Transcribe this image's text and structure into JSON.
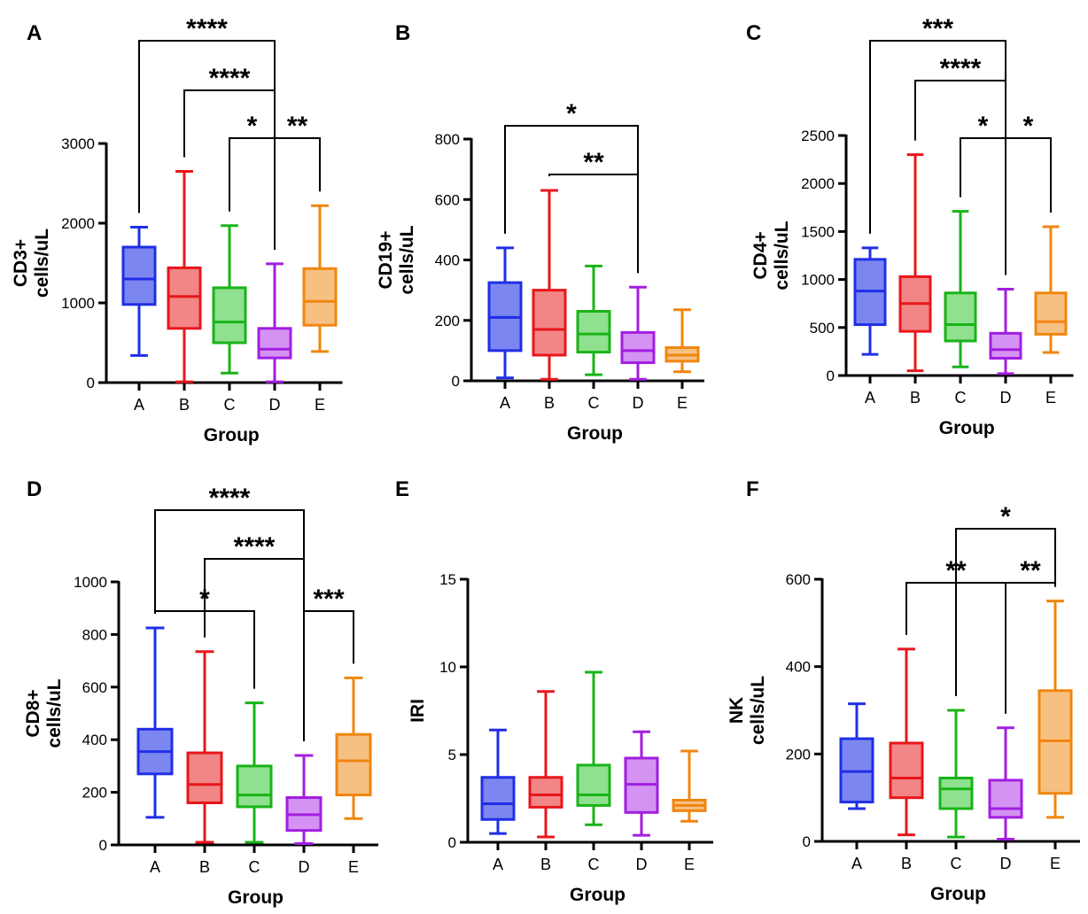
{
  "chart_data": [
    {
      "panel": "A",
      "type": "box",
      "xlabel": "Group",
      "ylabel": [
        "CD3+",
        "cells/uL"
      ],
      "ylim": [
        0,
        3000
      ],
      "yticks": [
        0,
        1000,
        2000,
        3000
      ],
      "categories": [
        "A",
        "B",
        "C",
        "D",
        "E"
      ],
      "boxes": [
        {
          "group": "A",
          "min": 340,
          "q1": 980,
          "median": 1300,
          "q3": 1700,
          "max": 1950
        },
        {
          "group": "B",
          "min": 10,
          "q1": 680,
          "median": 1080,
          "q3": 1440,
          "max": 2650
        },
        {
          "group": "C",
          "min": 120,
          "q1": 500,
          "median": 760,
          "q3": 1190,
          "max": 1970
        },
        {
          "group": "D",
          "min": 10,
          "q1": 310,
          "median": 420,
          "q3": 680,
          "max": 1490
        },
        {
          "group": "E",
          "min": 390,
          "q1": 720,
          "median": 1020,
          "q3": 1430,
          "max": 2220
        }
      ],
      "significance": [
        {
          "from": "A",
          "to": "D",
          "label": "****",
          "level": 0
        },
        {
          "from": "B",
          "to": "D",
          "label": "****",
          "level": 1
        },
        {
          "from": "C",
          "to": "D",
          "label": "*",
          "level": 2
        },
        {
          "from": "D",
          "to": "E",
          "label": "**",
          "level": 2
        }
      ]
    },
    {
      "panel": "B",
      "type": "box",
      "xlabel": "Group",
      "ylabel": [
        "CD19+",
        "cells/uL"
      ],
      "ylim": [
        0,
        800
      ],
      "yticks": [
        0,
        200,
        400,
        600,
        800
      ],
      "categories": [
        "A",
        "B",
        "C",
        "D",
        "E"
      ],
      "boxes": [
        {
          "group": "A",
          "min": 10,
          "q1": 100,
          "median": 210,
          "q3": 325,
          "max": 440
        },
        {
          "group": "B",
          "min": 5,
          "q1": 85,
          "median": 170,
          "q3": 300,
          "max": 630
        },
        {
          "group": "C",
          "min": 20,
          "q1": 95,
          "median": 155,
          "q3": 230,
          "max": 380
        },
        {
          "group": "D",
          "min": 5,
          "q1": 60,
          "median": 100,
          "q3": 160,
          "max": 310
        },
        {
          "group": "E",
          "min": 30,
          "q1": 65,
          "median": 85,
          "q3": 110,
          "max": 235
        }
      ],
      "significance": [
        {
          "from": "A",
          "to": "D",
          "label": "*",
          "level": 0
        },
        {
          "from": "B",
          "to": "D",
          "label": "**",
          "level": 1
        }
      ]
    },
    {
      "panel": "C",
      "type": "box",
      "xlabel": "Group",
      "ylabel": [
        "CD4+",
        "cells/uL"
      ],
      "ylim": [
        0,
        2500
      ],
      "yticks": [
        0,
        500,
        1000,
        1500,
        2000,
        2500
      ],
      "categories": [
        "A",
        "B",
        "C",
        "D",
        "E"
      ],
      "boxes": [
        {
          "group": "A",
          "min": 220,
          "q1": 530,
          "median": 880,
          "q3": 1210,
          "max": 1330
        },
        {
          "group": "B",
          "min": 50,
          "q1": 460,
          "median": 750,
          "q3": 1030,
          "max": 2300
        },
        {
          "group": "C",
          "min": 90,
          "q1": 360,
          "median": 530,
          "q3": 860,
          "max": 1710
        },
        {
          "group": "D",
          "min": 20,
          "q1": 180,
          "median": 270,
          "q3": 440,
          "max": 900
        },
        {
          "group": "E",
          "min": 240,
          "q1": 430,
          "median": 560,
          "q3": 860,
          "max": 1550
        }
      ],
      "significance": [
        {
          "from": "A",
          "to": "D",
          "label": "***",
          "level": 0
        },
        {
          "from": "B",
          "to": "D",
          "label": "****",
          "level": 1
        },
        {
          "from": "C",
          "to": "D",
          "label": "*",
          "level": 2
        },
        {
          "from": "D",
          "to": "E",
          "label": "*",
          "level": 2
        }
      ]
    },
    {
      "panel": "D",
      "type": "box",
      "xlabel": "Group",
      "ylabel": [
        "CD8+",
        "cells/uL"
      ],
      "ylim": [
        0,
        1000
      ],
      "yticks": [
        0,
        200,
        400,
        600,
        800,
        1000
      ],
      "categories": [
        "A",
        "B",
        "C",
        "D",
        "E"
      ],
      "boxes": [
        {
          "group": "A",
          "min": 105,
          "q1": 270,
          "median": 355,
          "q3": 440,
          "max": 825
        },
        {
          "group": "B",
          "min": 10,
          "q1": 160,
          "median": 230,
          "q3": 350,
          "max": 735
        },
        {
          "group": "C",
          "min": 10,
          "q1": 145,
          "median": 190,
          "q3": 300,
          "max": 540
        },
        {
          "group": "D",
          "min": 5,
          "q1": 55,
          "median": 115,
          "q3": 180,
          "max": 340
        },
        {
          "group": "E",
          "min": 100,
          "q1": 190,
          "median": 320,
          "q3": 420,
          "max": 635
        }
      ],
      "significance": [
        {
          "from": "A",
          "to": "D",
          "label": "****",
          "level": 0
        },
        {
          "from": "B",
          "to": "D",
          "label": "****",
          "level": 1
        },
        {
          "from": "A",
          "to": "C",
          "label": "*",
          "level": 2
        },
        {
          "from": "D",
          "to": "E",
          "label": "***",
          "level": 2
        }
      ]
    },
    {
      "panel": "E",
      "type": "box",
      "xlabel": "Group",
      "ylabel": [
        "IRI"
      ],
      "ylim": [
        0,
        15
      ],
      "yticks": [
        0,
        5,
        10,
        15
      ],
      "categories": [
        "A",
        "B",
        "C",
        "D",
        "E"
      ],
      "boxes": [
        {
          "group": "A",
          "min": 0.5,
          "q1": 1.3,
          "median": 2.2,
          "q3": 3.7,
          "max": 6.4
        },
        {
          "group": "B",
          "min": 0.3,
          "q1": 2.0,
          "median": 2.7,
          "q3": 3.7,
          "max": 8.6
        },
        {
          "group": "C",
          "min": 1.0,
          "q1": 2.1,
          "median": 2.7,
          "q3": 4.4,
          "max": 9.7
        },
        {
          "group": "D",
          "min": 0.4,
          "q1": 1.7,
          "median": 3.3,
          "q3": 4.8,
          "max": 6.3
        },
        {
          "group": "E",
          "min": 1.2,
          "q1": 1.8,
          "median": 2.1,
          "q3": 2.4,
          "max": 5.2
        }
      ],
      "significance": []
    },
    {
      "panel": "F",
      "type": "box",
      "xlabel": "Group",
      "ylabel": [
        "NK",
        "cells/uL"
      ],
      "ylim": [
        0,
        600
      ],
      "yticks": [
        0,
        200,
        400,
        600
      ],
      "categories": [
        "A",
        "B",
        "C",
        "D",
        "E"
      ],
      "boxes": [
        {
          "group": "A",
          "min": 75,
          "q1": 90,
          "median": 160,
          "q3": 235,
          "max": 315
        },
        {
          "group": "B",
          "min": 15,
          "q1": 100,
          "median": 145,
          "q3": 225,
          "max": 440
        },
        {
          "group": "C",
          "min": 10,
          "q1": 75,
          "median": 120,
          "q3": 145,
          "max": 300
        },
        {
          "group": "D",
          "min": 5,
          "q1": 55,
          "median": 75,
          "q3": 140,
          "max": 260
        },
        {
          "group": "E",
          "min": 55,
          "q1": 110,
          "median": 230,
          "q3": 345,
          "max": 550
        }
      ],
      "significance": [
        {
          "from": "C",
          "to": "E",
          "label": "*",
          "level": 0
        },
        {
          "from": "B",
          "to": "D",
          "label": "**",
          "level": 1
        },
        {
          "from": "D",
          "to": "E",
          "label": "**",
          "level": 1
        }
      ]
    }
  ],
  "colors": {
    "A": {
      "stroke": "#1f2fe6",
      "fill": "#7c86f0"
    },
    "B": {
      "stroke": "#e8161b",
      "fill": "#f28585"
    },
    "C": {
      "stroke": "#18b418",
      "fill": "#8fe08f"
    },
    "D": {
      "stroke": "#a21ee0",
      "fill": "#d493f2"
    },
    "E": {
      "stroke": "#f0860f",
      "fill": "#f7c083"
    }
  }
}
